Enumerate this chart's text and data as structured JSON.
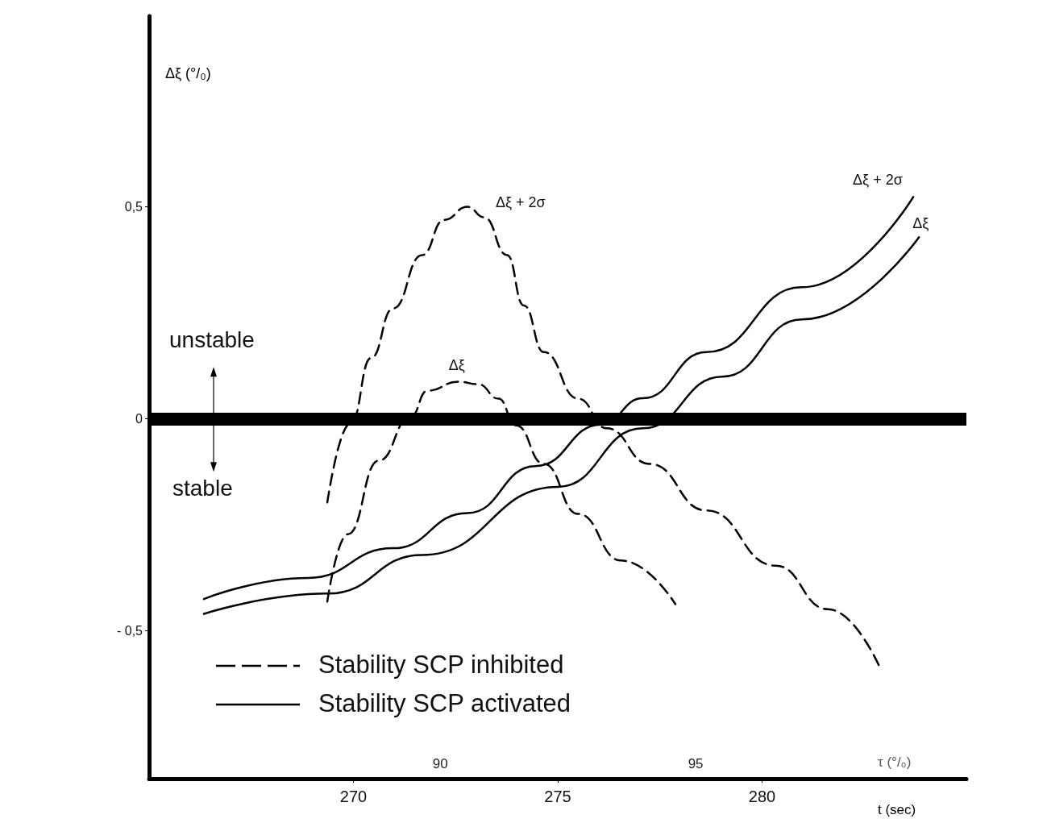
{
  "chart_data": {
    "type": "line",
    "xlabel": "t (sec)",
    "ylabel": "Δξ (°/₀)",
    "x2label": "τ (°/₀)",
    "xlim": [
      265,
      285
    ],
    "xticks": [
      270,
      275,
      280
    ],
    "x2lim": [
      84.3,
      100.3
    ],
    "x2ticks": [
      90,
      95
    ],
    "ylim": [
      -0.85,
      0.95
    ],
    "yticks": [
      {
        "value": -0.5,
        "label": "- 0,5"
      },
      {
        "value": 0,
        "label": "0"
      },
      {
        "value": 0.5,
        "label": "0,5"
      }
    ],
    "grid": false,
    "legend": false,
    "marker": "none",
    "ref_lines": [
      {
        "axis": "y",
        "value": 0,
        "label": null,
        "color": "#000000"
      }
    ],
    "annotations": [
      "unstable",
      "stable",
      "Stability SCP inhibited",
      "Stability SCP activated"
    ],
    "series": [
      {
        "name": "Δξ + 2σ",
        "color": "#000000",
        "line_style": "dashed",
        "x": [
          269.36,
          269.94,
          270.43,
          270.97,
          271.68,
          272.22,
          272.79,
          273.2,
          273.76,
          274.17,
          274.66,
          275.5,
          276.2,
          277.25,
          278.64,
          280.33,
          281.62,
          282.87
        ],
        "values": [
          -0.198,
          -0.01,
          0.143,
          0.26,
          0.386,
          0.469,
          0.5,
          0.475,
          0.386,
          0.267,
          0.157,
          0.047,
          -0.023,
          -0.107,
          -0.217,
          -0.347,
          -0.45,
          -0.585
        ]
      },
      {
        "name": "Δξ",
        "color": "#000000",
        "line_style": "dashed",
        "x": [
          269.36,
          269.86,
          270.62,
          271.4,
          271.81,
          272.57,
          273.06,
          273.55,
          273.98,
          274.66,
          275.5,
          276.55,
          277.88
        ],
        "values": [
          -0.432,
          -0.273,
          -0.099,
          0.004,
          0.066,
          0.087,
          0.081,
          0.047,
          -0.016,
          -0.107,
          -0.225,
          -0.335,
          -0.438
        ]
      },
      {
        "name": "Δξ + 2σ",
        "color": "#000000",
        "line_style": "solid",
        "x": [
          266.34,
          268.89,
          270.97,
          272.79,
          274.46,
          276.06,
          277.08,
          278.64,
          280.97,
          283.7
        ],
        "values": [
          -0.426,
          -0.376,
          -0.306,
          -0.223,
          -0.112,
          -0.014,
          0.048,
          0.157,
          0.31,
          0.523
        ]
      },
      {
        "name": "Δξ",
        "color": "#000000",
        "line_style": "solid",
        "x": [
          266.34,
          269.38,
          271.68,
          275.01,
          277.08,
          279.03,
          280.97,
          283.84
        ],
        "values": [
          -0.461,
          -0.413,
          -0.322,
          -0.161,
          -0.023,
          0.099,
          0.234,
          0.428
        ]
      }
    ]
  }
}
